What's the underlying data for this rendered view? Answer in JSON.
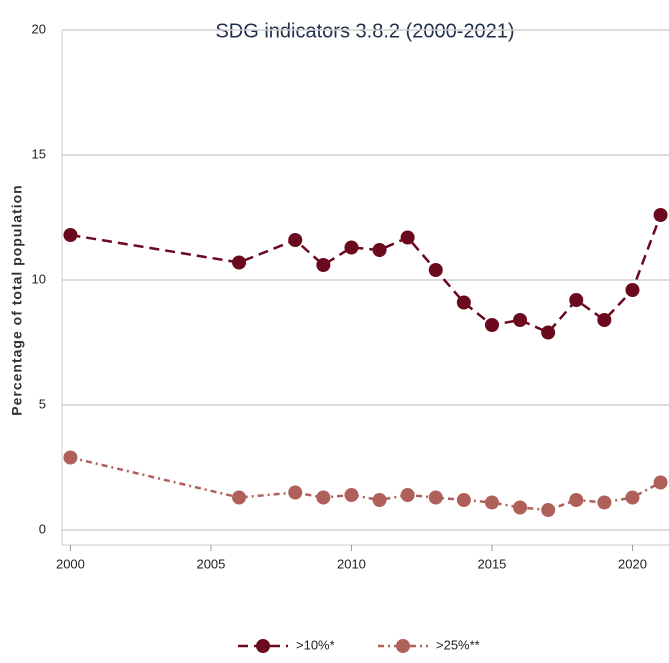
{
  "chart_data": {
    "type": "line",
    "title": "SDG indicators 3.8.2 (2000-2021)",
    "y_label": "Percentage of total population",
    "x": [
      2000,
      2006,
      2008,
      2009,
      2010,
      2011,
      2012,
      2013,
      2014,
      2015,
      2016,
      2017,
      2018,
      2019,
      2020,
      2021
    ],
    "series": [
      {
        "name": ">10%*",
        "color": "#6b0a1e",
        "dash": "10,6",
        "values": [
          11.8,
          10.7,
          11.6,
          10.6,
          11.3,
          11.2,
          11.7,
          10.4,
          9.1,
          8.2,
          8.4,
          7.9,
          9.2,
          8.4,
          9.6,
          12.6
        ]
      },
      {
        "name": ">25%**",
        "color": "#b0605a",
        "dash": "6,4,2,4",
        "values": [
          2.9,
          1.3,
          1.5,
          1.3,
          1.4,
          1.2,
          1.4,
          1.3,
          1.2,
          1.1,
          0.9,
          0.8,
          1.2,
          1.1,
          1.3,
          1.9
        ]
      }
    ],
    "xlim": [
      1999.7,
      2021.3
    ],
    "xticks": [
      2000,
      2005,
      2010,
      2015,
      2020
    ],
    "ylim": [
      -0.6,
      20
    ],
    "yticks": [
      0,
      5,
      10,
      15,
      20
    ],
    "grid": true,
    "legend": "bottom"
  }
}
